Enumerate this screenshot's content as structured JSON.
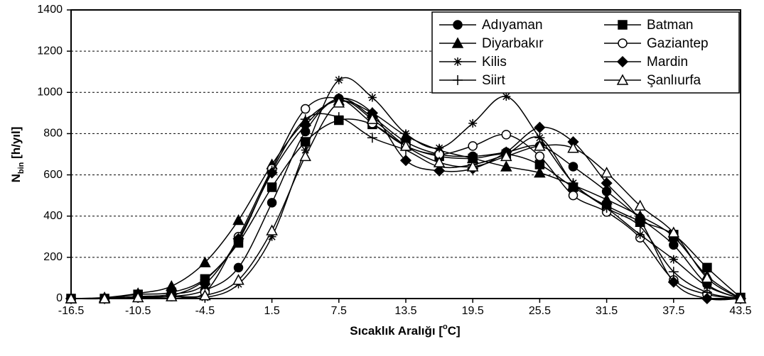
{
  "chart_data": {
    "type": "line",
    "xlabel": [
      "Sıcaklık Aralığı [",
      "o",
      "C]"
    ],
    "ylabel": [
      "N",
      "bin",
      " [h/yıl]"
    ],
    "x": [
      -16.5,
      -13.5,
      -10.5,
      -7.5,
      -4.5,
      -1.5,
      1.5,
      4.5,
      7.5,
      10.5,
      13.5,
      16.5,
      19.5,
      22.5,
      25.5,
      28.5,
      31.5,
      34.5,
      37.5,
      40.5,
      43.5
    ],
    "xlim": [
      -16.5,
      43.5
    ],
    "xticks": [
      -16.5,
      -10.5,
      -4.5,
      1.5,
      7.5,
      13.5,
      19.5,
      25.5,
      31.5,
      37.5,
      43.5
    ],
    "ylim": [
      0,
      1400
    ],
    "yticks": [
      0,
      200,
      400,
      600,
      800,
      1000,
      1200,
      1400
    ],
    "grid": true,
    "legend": "upper right",
    "series": [
      {
        "name": "Adıyaman",
        "color": "#000000",
        "marker": "circle-filled",
        "values": [
          0,
          0,
          5,
          10,
          40,
          150,
          465,
          810,
          970,
          880,
          760,
          700,
          690,
          710,
          740,
          640,
          520,
          390,
          260,
          70,
          0
        ]
      },
      {
        "name": "Batman",
        "color": "#000000",
        "marker": "square-filled",
        "values": [
          0,
          0,
          20,
          30,
          95,
          270,
          540,
          760,
          865,
          845,
          740,
          690,
          680,
          700,
          650,
          540,
          450,
          375,
          310,
          150,
          5
        ]
      },
      {
        "name": "Diyarbakır",
        "color": "#000000",
        "marker": "triangle-filled",
        "values": [
          0,
          5,
          25,
          60,
          175,
          380,
          650,
          860,
          960,
          900,
          790,
          720,
          680,
          640,
          610,
          550,
          480,
          400,
          300,
          110,
          0
        ]
      },
      {
        "name": "Gaziantep",
        "color": "#000000",
        "marker": "circle-open",
        "values": [
          0,
          0,
          5,
          10,
          30,
          300,
          630,
          920,
          970,
          850,
          740,
          700,
          740,
          795,
          690,
          500,
          420,
          295,
          90,
          20,
          0
        ]
      },
      {
        "name": "Kilis",
        "color": "#000000",
        "marker": "star",
        "values": [
          0,
          0,
          5,
          10,
          5,
          70,
          300,
          720,
          1060,
          975,
          800,
          730,
          850,
          980,
          780,
          560,
          440,
          310,
          190,
          60,
          0
        ]
      },
      {
        "name": "Mardin",
        "color": "#000000",
        "marker": "diamond-filled",
        "values": [
          0,
          0,
          10,
          20,
          70,
          290,
          610,
          840,
          970,
          900,
          670,
          620,
          630,
          710,
          830,
          760,
          560,
          380,
          80,
          0,
          0
        ]
      },
      {
        "name": "Siirt",
        "color": "#000000",
        "marker": "plus",
        "values": [
          0,
          0,
          10,
          15,
          90,
          280,
          620,
          870,
          880,
          780,
          720,
          640,
          650,
          700,
          780,
          560,
          440,
          350,
          130,
          30,
          0
        ]
      },
      {
        "name": "Şanlıurfa",
        "color": "#000000",
        "marker": "triangle-open",
        "values": [
          0,
          0,
          5,
          10,
          15,
          90,
          330,
          690,
          950,
          870,
          740,
          660,
          640,
          690,
          740,
          730,
          610,
          450,
          320,
          100,
          0
        ]
      }
    ]
  }
}
